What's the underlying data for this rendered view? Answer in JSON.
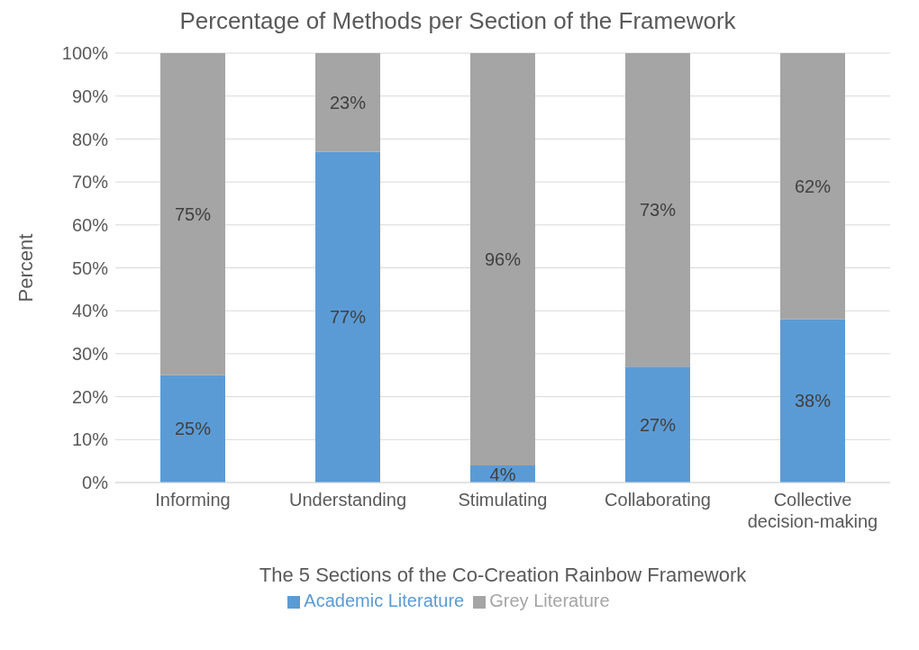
{
  "chart_data": {
    "type": "bar",
    "title": "Percentage of Methods per Section of the Framework",
    "xlabel": "The 5 Sections of the Co-Creation Rainbow Framework",
    "ylabel": "Percent",
    "categories": [
      "Informing",
      "Understanding",
      "Stimulating",
      "Collaborating",
      "Collective decision-making"
    ],
    "series": [
      {
        "name": "Academic Literature",
        "color": "#5b9bd5",
        "values": [
          25,
          77,
          4,
          27,
          38
        ],
        "value_labels": [
          "25%",
          "77%",
          "4%",
          "27%",
          "38%"
        ]
      },
      {
        "name": "Grey Literature",
        "color": "#a5a5a5",
        "values": [
          75,
          23,
          96,
          73,
          62
        ],
        "value_labels": [
          "75%",
          "23%",
          "96%",
          "73%",
          "62%"
        ]
      }
    ],
    "stacked": true,
    "ylim": [
      0,
      100
    ],
    "yticks": [
      {
        "value": 0,
        "label": "0%"
      },
      {
        "value": 10,
        "label": "10%"
      },
      {
        "value": 20,
        "label": "20%"
      },
      {
        "value": 30,
        "label": "30%"
      },
      {
        "value": 40,
        "label": "40%"
      },
      {
        "value": 50,
        "label": "50%"
      },
      {
        "value": 60,
        "label": "60%"
      },
      {
        "value": 70,
        "label": "70%"
      },
      {
        "value": 80,
        "label": "80%"
      },
      {
        "value": 90,
        "label": "90%"
      },
      {
        "value": 100,
        "label": "100%"
      }
    ],
    "grid": "y",
    "legend": "bottom"
  }
}
